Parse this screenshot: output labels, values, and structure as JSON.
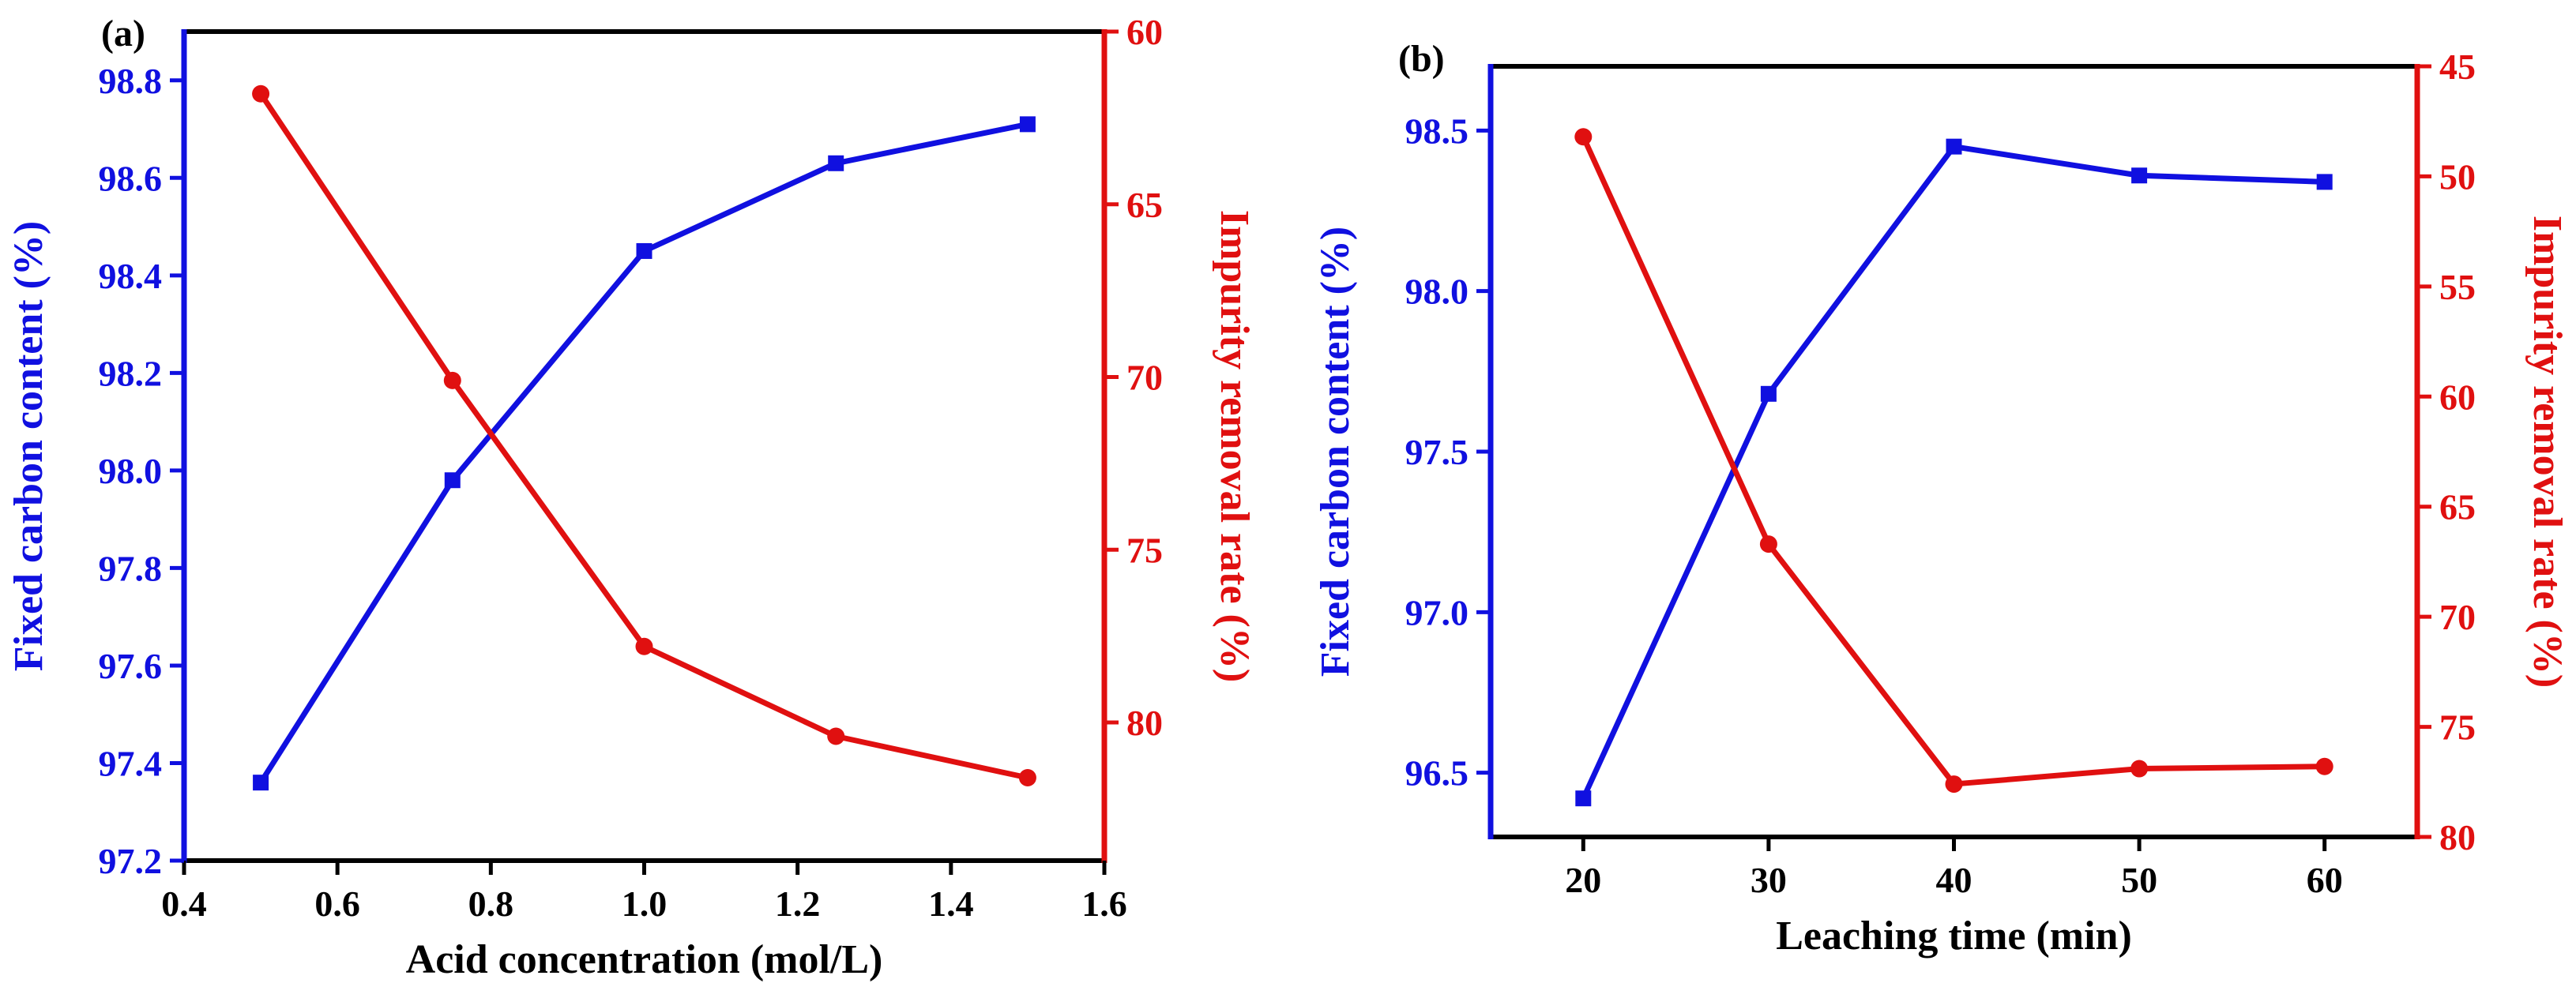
{
  "colors": {
    "left_axis": "#1010e0",
    "right_axis": "#e01010",
    "frame": "#000000"
  },
  "chart_data": [
    {
      "type": "line",
      "panel_label": "(a)",
      "xlabel": "Acid concentration (mol/L)",
      "ylabel_left": "Fixed carbon content (%)",
      "ylabel_right": "Impurity removal rate (%)",
      "xlim": [
        0.4,
        1.6
      ],
      "xticks": [
        0.4,
        0.6,
        0.8,
        1.0,
        1.2,
        1.4,
        1.6
      ],
      "xtick_labels": [
        "0.4",
        "0.6",
        "0.8",
        "1.0",
        "1.2",
        "1.4",
        "1.6"
      ],
      "ylim_left": [
        97.2,
        98.9
      ],
      "yticks_left": [
        97.2,
        97.4,
        97.6,
        97.8,
        98.0,
        98.2,
        98.4,
        98.6,
        98.8
      ],
      "ytick_labels_left": [
        "97.2",
        "97.4",
        "97.6",
        "97.8",
        "98.0",
        "98.2",
        "98.4",
        "98.6",
        "98.8"
      ],
      "ylim_right": [
        60,
        84
      ],
      "right_inverted": true,
      "yticks_right": [
        60,
        65,
        70,
        75,
        80
      ],
      "ytick_labels_right": [
        "60",
        "65",
        "70",
        "75",
        "80"
      ],
      "series": [
        {
          "name": "Fixed carbon content",
          "axis": "left",
          "marker": "square",
          "x": [
            0.5,
            0.75,
            1.0,
            1.25,
            1.5
          ],
          "values": [
            97.36,
            97.98,
            98.45,
            98.63,
            98.71
          ]
        },
        {
          "name": "Impurity removal rate",
          "axis": "right",
          "marker": "circle",
          "x": [
            0.5,
            0.75,
            1.0,
            1.25,
            1.5
          ],
          "values": [
            61.8,
            70.1,
            77.8,
            80.4,
            81.6
          ]
        }
      ]
    },
    {
      "type": "line",
      "panel_label": "(b)",
      "xlabel": "Leaching time (min)",
      "ylabel_left": "Fixed carbon content (%)",
      "ylabel_right": "Impurity removal rate (%)",
      "xlim": [
        15,
        65
      ],
      "xticks": [
        20,
        30,
        40,
        50,
        60
      ],
      "xtick_labels": [
        "20",
        "30",
        "40",
        "50",
        "60"
      ],
      "ylim_left": [
        96.3,
        98.7
      ],
      "yticks_left": [
        96.5,
        97.0,
        97.5,
        98.0,
        98.5
      ],
      "ytick_labels_left": [
        "96.5",
        "97.0",
        "97.5",
        "98.0",
        "98.5"
      ],
      "ylim_right": [
        45,
        80
      ],
      "right_inverted": true,
      "yticks_right": [
        45,
        50,
        55,
        60,
        65,
        70,
        75,
        80
      ],
      "ytick_labels_right": [
        "45",
        "50",
        "55",
        "60",
        "65",
        "70",
        "75",
        "80"
      ],
      "series": [
        {
          "name": "Fixed carbon content",
          "axis": "left",
          "marker": "square",
          "x": [
            20,
            30,
            40,
            50,
            60
          ],
          "values": [
            96.42,
            97.68,
            98.45,
            98.36,
            98.34
          ]
        },
        {
          "name": "Impurity removal rate",
          "axis": "right",
          "marker": "circle",
          "x": [
            20,
            30,
            40,
            50,
            60
          ],
          "values": [
            48.2,
            66.7,
            77.6,
            76.9,
            76.8
          ]
        }
      ]
    }
  ]
}
